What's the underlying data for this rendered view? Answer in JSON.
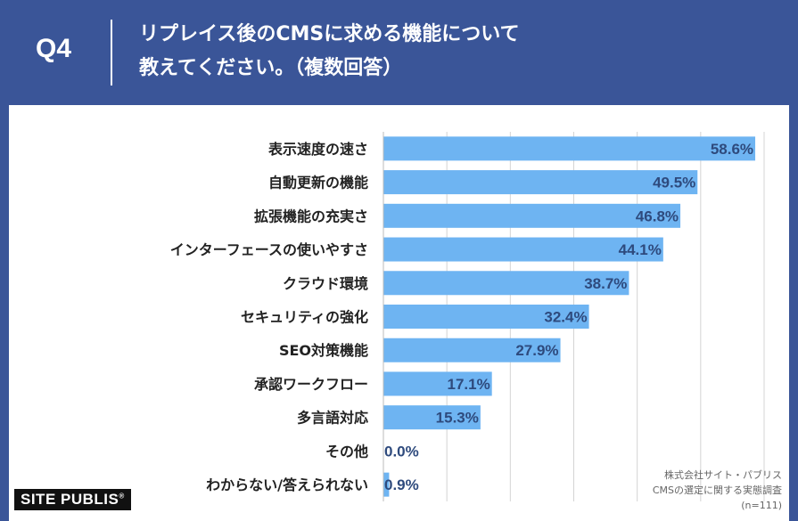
{
  "header": {
    "question_label": "Q4",
    "title_line1": "リプレイス後のCMSに求める機能について",
    "title_line2": "教えてください。（複数回答）"
  },
  "chart_data": {
    "type": "bar",
    "orientation": "horizontal",
    "categories": [
      "表示速度の速さ",
      "自動更新の機能",
      "拡張機能の充実さ",
      "インターフェースの使いやすさ",
      "クラウド環境",
      "セキュリティの強化",
      "SEO対策機能",
      "承認ワークフロー",
      "多言語対応",
      "その他",
      "わからない/答えられない"
    ],
    "values": [
      58.6,
      49.5,
      46.8,
      44.1,
      38.7,
      32.4,
      27.9,
      17.1,
      15.3,
      0.0,
      0.9
    ],
    "value_labels": [
      "58.6%",
      "49.5%",
      "46.8%",
      "44.1%",
      "38.7%",
      "32.4%",
      "27.9%",
      "17.1%",
      "15.3%",
      "0.0%",
      "0.9%"
    ],
    "unit": "%",
    "xlim": [
      0,
      60
    ],
    "grid": true,
    "bar_color": "#6eb4f2"
  },
  "footer": {
    "logo_text": "SITE PUBLIS",
    "logo_mark": "®",
    "source_line1": "株式会社サイト・パブリス",
    "source_line2": "CMSの選定に関する実態調査",
    "source_line3": "(n=111)"
  }
}
